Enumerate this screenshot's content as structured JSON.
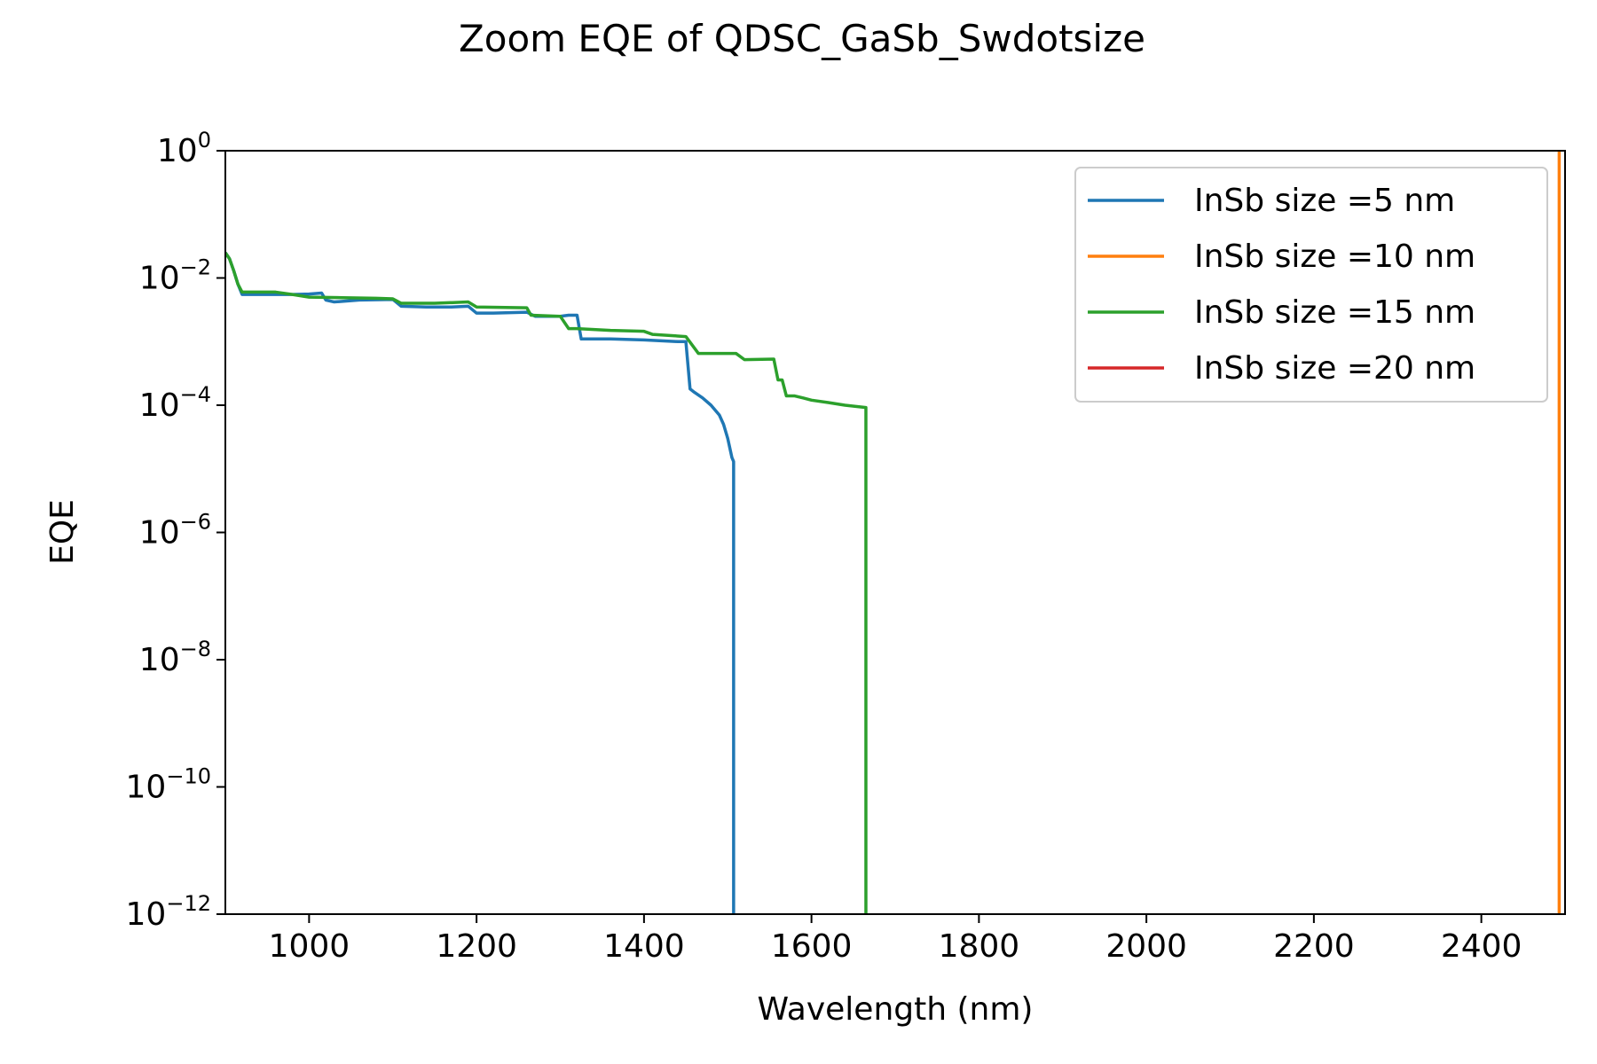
{
  "chart_data": {
    "type": "line",
    "title": "Zoom EQE of QDSC_GaSb_Swdotsize",
    "xlabel": "Wavelength (nm)",
    "ylabel": "EQE",
    "xlim": [
      900,
      2500
    ],
    "ylim": [
      1e-12,
      1
    ],
    "yscale": "log",
    "x_ticks": [
      1000,
      1200,
      1400,
      1600,
      1800,
      2000,
      2200,
      2400
    ],
    "x_tick_labels": [
      "1000",
      "1200",
      "1400",
      "1600",
      "1800",
      "2000",
      "2200",
      "2400"
    ],
    "y_ticks": [
      {
        "value": 1,
        "base": "10",
        "exp": "0"
      },
      {
        "value": 0.01,
        "base": "10",
        "exp": "−2"
      },
      {
        "value": 0.0001,
        "base": "10",
        "exp": "−4"
      },
      {
        "value": 1e-06,
        "base": "10",
        "exp": "−6"
      },
      {
        "value": 1e-08,
        "base": "10",
        "exp": "−8"
      },
      {
        "value": 1e-10,
        "base": "10",
        "exp": "−10"
      },
      {
        "value": 1e-12,
        "base": "10",
        "exp": "−12"
      }
    ],
    "grid": false,
    "legend_position": "top-right",
    "series": [
      {
        "name": "InSb size =5 nm",
        "color": "#1f77b4",
        "x": [
          900,
          905,
          910,
          915,
          920,
          940,
          960,
          980,
          1000,
          1015,
          1020,
          1030,
          1060,
          1100,
          1110,
          1140,
          1170,
          1190,
          1200,
          1220,
          1260,
          1270,
          1300,
          1310,
          1320,
          1325,
          1360,
          1400,
          1440,
          1450,
          1455,
          1460,
          1470,
          1480,
          1490,
          1495,
          1500,
          1505,
          1507,
          1507
        ],
        "y": [
          0.025,
          0.02,
          0.013,
          0.008,
          0.0055,
          0.0055,
          0.0055,
          0.0055,
          0.0056,
          0.0058,
          0.0045,
          0.0042,
          0.0045,
          0.0046,
          0.0036,
          0.0035,
          0.0035,
          0.0036,
          0.0028,
          0.0028,
          0.0029,
          0.0025,
          0.0025,
          0.0026,
          0.0026,
          0.0011,
          0.0011,
          0.00106,
          0.001,
          0.001,
          0.00018,
          0.00016,
          0.00013,
          0.0001,
          7e-05,
          5e-05,
          3e-05,
          1.5e-05,
          1.3e-05,
          1e-12
        ]
      },
      {
        "name": "InSb size =10 nm",
        "color": "#ff7f0e",
        "x": [
          2493,
          2493
        ],
        "y": [
          1e-12,
          1
        ]
      },
      {
        "name": "InSb size =15 nm",
        "color": "#2ca02c",
        "x": [
          900,
          905,
          910,
          915,
          920,
          960,
          980,
          1000,
          1040,
          1080,
          1100,
          1110,
          1150,
          1190,
          1200,
          1260,
          1265,
          1300,
          1310,
          1320,
          1360,
          1400,
          1410,
          1450,
          1465,
          1510,
          1520,
          1555,
          1560,
          1565,
          1570,
          1580,
          1590,
          1600,
          1620,
          1640,
          1665,
          1665
        ],
        "y": [
          0.025,
          0.02,
          0.013,
          0.008,
          0.006,
          0.006,
          0.0055,
          0.005,
          0.0049,
          0.0048,
          0.0047,
          0.004,
          0.004,
          0.0042,
          0.0035,
          0.0034,
          0.0026,
          0.0025,
          0.0016,
          0.0016,
          0.0015,
          0.00145,
          0.0013,
          0.0012,
          0.00065,
          0.00065,
          0.00052,
          0.00053,
          0.00025,
          0.00025,
          0.00014,
          0.00014,
          0.00013,
          0.00012,
          0.00011,
          0.0001,
          9.2e-05,
          1e-12
        ]
      },
      {
        "name": "InSb size =20 nm",
        "color": "#d62728",
        "x": [],
        "y": []
      }
    ]
  }
}
